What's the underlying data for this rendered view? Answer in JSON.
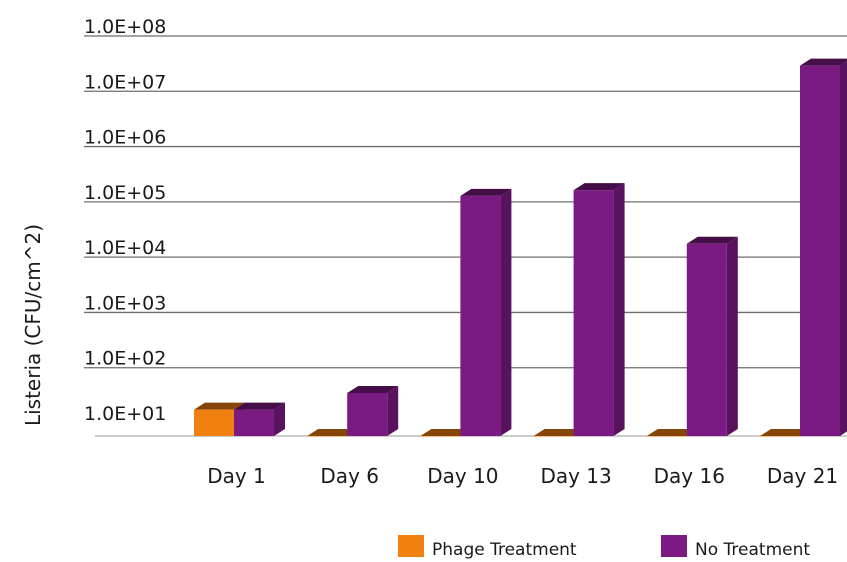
{
  "chart_data": {
    "type": "bar",
    "title": "",
    "xlabel": "",
    "ylabel": "Listeria (CFU/cm^2)",
    "yscale": "log",
    "ylim": [
      10,
      100000000
    ],
    "yticks": [
      10,
      100,
      1000,
      10000,
      100000,
      1000000,
      10000000,
      100000000
    ],
    "ytick_labels": [
      "1.0E+01",
      "1.0E+02",
      "1.0E+03",
      "1.0E+04",
      "1.0E+05",
      "1.0E+06",
      "1.0E+07",
      "1.0E+08"
    ],
    "grid": true,
    "style": "3d-column",
    "legend_position": "bottom-right",
    "categories": [
      "Day 1",
      "Day 6",
      "Day 10",
      "Day 13",
      "Day 16",
      "Day 21"
    ],
    "series": [
      {
        "name": "Phage Treatment",
        "color": "#f08010",
        "values": [
          30,
          10,
          10,
          10,
          10,
          10
        ]
      },
      {
        "name": "No Treatment",
        "color": "#7b1a82",
        "values": [
          30,
          60,
          220000,
          280000,
          30000,
          50000000
        ]
      }
    ]
  }
}
